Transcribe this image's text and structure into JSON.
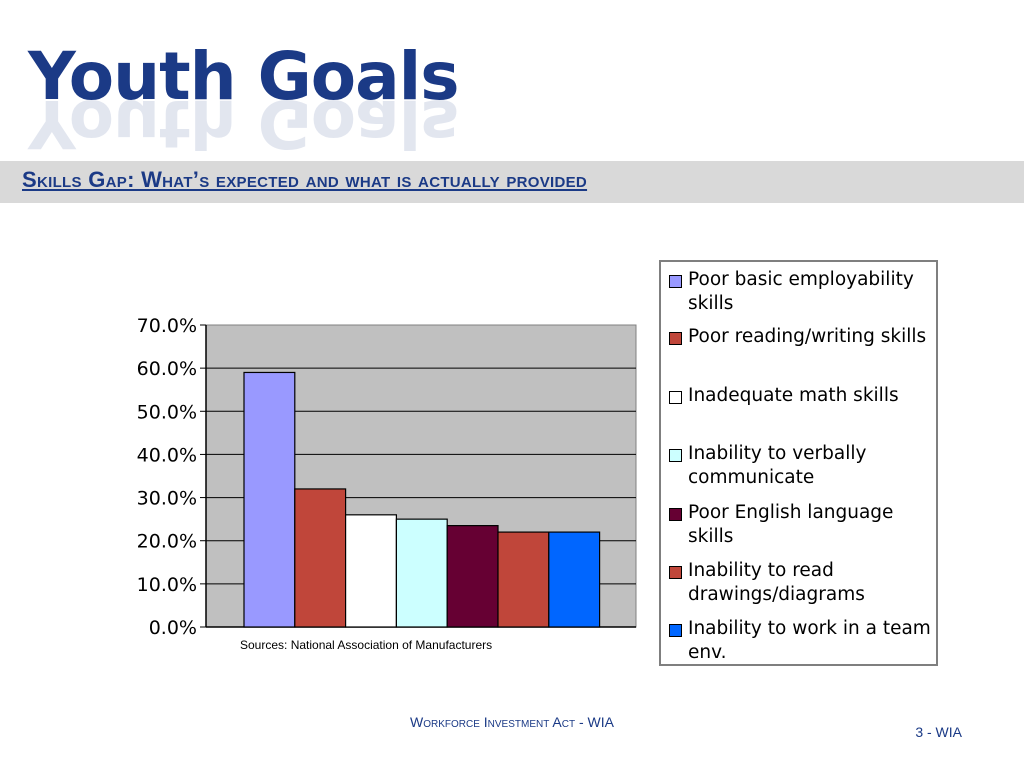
{
  "slide": {
    "title": "Youth Goals",
    "subtitle": "Skills Gap: What’s expected and what is actually provided",
    "source": "Sources: National Association of Manufacturers",
    "footer": "Workforce Investment Act - WIA",
    "page_number": "3 - WIA"
  },
  "colors": {
    "title": "#1b3a86",
    "subtitle_band": "#d9d9d9",
    "plot_background": "#c0c0c0"
  },
  "chart_data": {
    "type": "bar",
    "title": "",
    "xlabel": "",
    "ylabel": "",
    "ylim": [
      0,
      0.7
    ],
    "yticks": [
      "70.0%",
      "60.0%",
      "50.0%",
      "40.0%",
      "30.0%",
      "20.0%",
      "10.0%",
      "0.0%"
    ],
    "grid": true,
    "legend_position": "right",
    "series": [
      {
        "name": "Poor basic employability skills",
        "value": 0.59,
        "color": "#9999ff"
      },
      {
        "name": "Poor reading/writing skills",
        "value": 0.32,
        "color": "#c0463a"
      },
      {
        "name": "Inadequate math skills",
        "value": 0.26,
        "color": "#ffffff"
      },
      {
        "name": "Inability to verbally communicate",
        "value": 0.25,
        "color": "#ccffff"
      },
      {
        "name": "Poor English language skills",
        "value": 0.235,
        "color": "#660033"
      },
      {
        "name": "Inability to read drawings/diagrams",
        "value": 0.22,
        "color": "#c0463a"
      },
      {
        "name": "Inability to work in a team env.",
        "value": 0.22,
        "color": "#0066ff"
      }
    ]
  }
}
